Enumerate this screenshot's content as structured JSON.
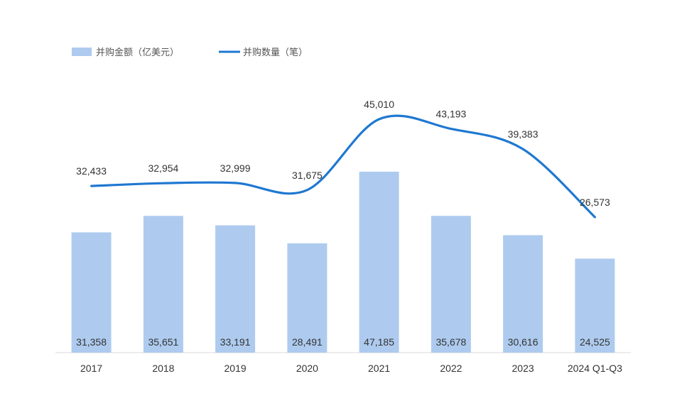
{
  "chart_data": {
    "type": "bar",
    "categories": [
      "2017",
      "2018",
      "2019",
      "2020",
      "2021",
      "2022",
      "2023",
      "2024 Q1-Q3"
    ],
    "series": [
      {
        "name": "并购金额（亿美元）",
        "type": "bar",
        "values": [
          31358,
          35651,
          33191,
          28491,
          47185,
          35678,
          30616,
          24525
        ],
        "color": "#aecbef"
      },
      {
        "name": "并购数量（笔）",
        "type": "line",
        "values": [
          32433,
          32954,
          32999,
          31675,
          45010,
          43193,
          39383,
          26573
        ],
        "color": "#1f78d1"
      }
    ],
    "legend": "top-left",
    "grid": false
  }
}
